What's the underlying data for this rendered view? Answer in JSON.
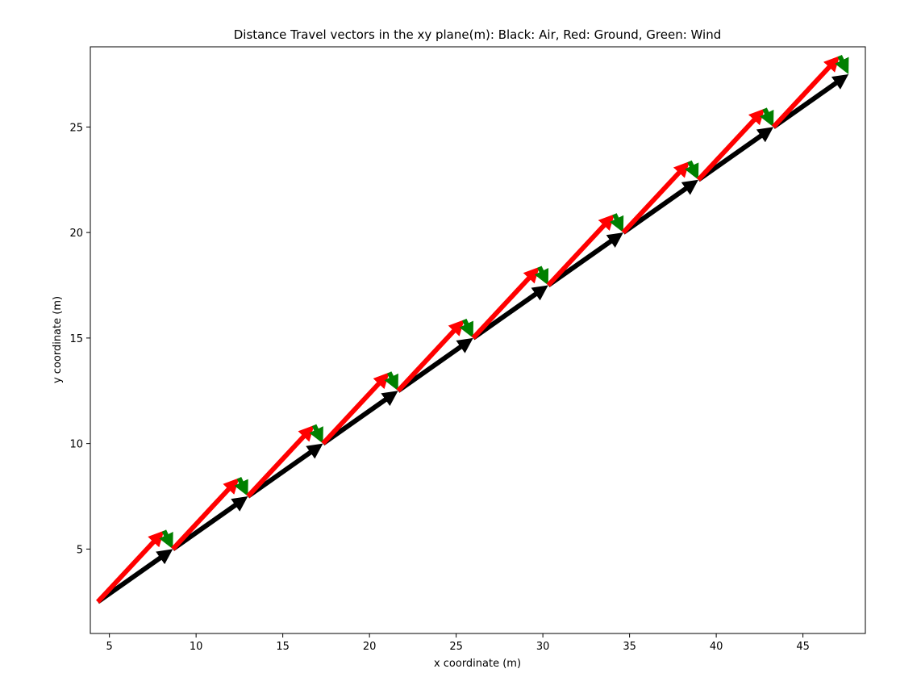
{
  "chart_data": {
    "type": "quiver",
    "title": "Distance Travel vectors in the xy plane(m): Black: Air, Red: Ground, Green: Wind",
    "xlabel": "x coordinate (m)",
    "ylabel": "y coordinate (m)",
    "xlim": [
      3.9,
      48.6
    ],
    "ylim": [
      1.0,
      28.8
    ],
    "xticks": [
      5,
      10,
      15,
      20,
      25,
      30,
      35,
      40,
      45
    ],
    "yticks": [
      5,
      10,
      15,
      20,
      25
    ],
    "grid": false,
    "legend": "none",
    "colors": {
      "air": "#000000",
      "ground": "#ff0000",
      "wind": "#008000"
    },
    "starts": [
      {
        "x": 4.33,
        "y": 2.5
      },
      {
        "x": 8.66,
        "y": 5.0
      },
      {
        "x": 12.99,
        "y": 7.5
      },
      {
        "x": 17.32,
        "y": 10.0
      },
      {
        "x": 21.65,
        "y": 12.5
      },
      {
        "x": 25.98,
        "y": 15.0
      },
      {
        "x": 30.31,
        "y": 17.5
      },
      {
        "x": 34.64,
        "y": 20.0
      },
      {
        "x": 38.97,
        "y": 22.5
      },
      {
        "x": 43.3,
        "y": 25.0
      }
    ],
    "air_vector": {
      "dx": 4.33,
      "dy": 2.5
    },
    "ground_vector": {
      "dx": 3.82,
      "dy": 3.37
    },
    "wind_vector": {
      "dx": 0.51,
      "dy": -0.87
    }
  }
}
